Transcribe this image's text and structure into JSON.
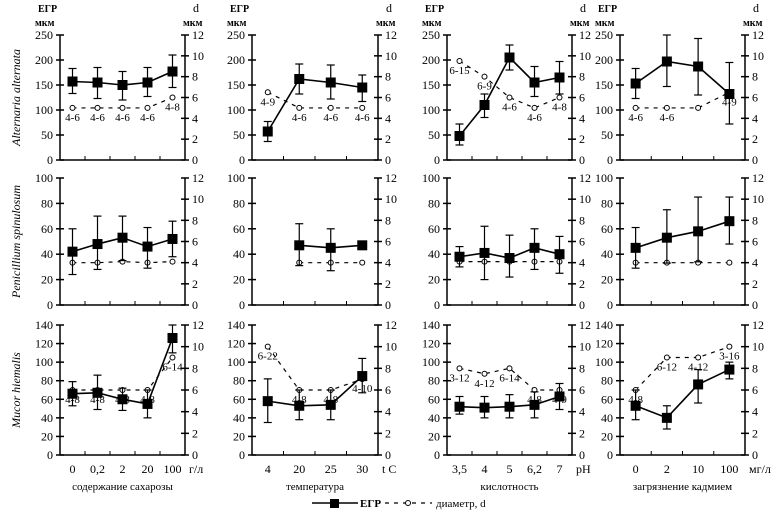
{
  "legend": {
    "egr_label": "ЕГР",
    "diam_label": "диаметр, d"
  },
  "axis_units": {
    "left_title": "ЕГР",
    "left_unit": "мкм",
    "right_title": "d",
    "right_unit": "мкм"
  },
  "rows": [
    {
      "species": "Alternaria alternata",
      "ylim": [
        0,
        250
      ],
      "yticks": [
        0,
        50,
        100,
        150,
        200,
        250
      ]
    },
    {
      "species": "Penicillium spinulosum",
      "ylim": [
        0,
        100
      ],
      "yticks": [
        0,
        20,
        40,
        60,
        80,
        100
      ]
    },
    {
      "species": "Mucor hiemalis",
      "ylim": [
        0,
        140
      ],
      "yticks": [
        0,
        20,
        40,
        60,
        80,
        100,
        120,
        140
      ]
    }
  ],
  "columns": [
    {
      "xlabel": "содержание сахарозы",
      "unit": "г/л",
      "categories": [
        "0",
        "0,2",
        "2",
        "20",
        "100"
      ]
    },
    {
      "xlabel": "температура",
      "unit": "t С",
      "categories": [
        "4",
        "20",
        "25",
        "30"
      ]
    },
    {
      "xlabel": "кислотность",
      "unit": "pH",
      "categories": [
        "3,5",
        "4",
        "5",
        "6,2",
        "7"
      ]
    },
    {
      "xlabel": "загрязнение кадмием",
      "unit": "мг/л",
      "categories": [
        "0",
        "2",
        "10",
        "100"
      ]
    }
  ],
  "right_axis": {
    "ylim": [
      0,
      12
    ],
    "yticks": [
      0,
      2,
      4,
      6,
      8,
      10,
      12
    ]
  },
  "chart_data": [
    {
      "type": "line",
      "row": 0,
      "col": 0,
      "title": "Alternaria alternata — содержание сахарозы",
      "series": [
        {
          "name": "ЕГР",
          "axis": "left",
          "values": [
            157,
            155,
            150,
            155,
            177
          ],
          "err_low": [
            133,
            123,
            120,
            127,
            145
          ],
          "err_high": [
            183,
            185,
            177,
            185,
            210
          ]
        },
        {
          "name": "диаметр, d",
          "axis": "right",
          "values": [
            5,
            5,
            5,
            5,
            6
          ],
          "labels": [
            "4-6",
            "4-6",
            "4-6",
            "4-6",
            "4-8"
          ]
        }
      ]
    },
    {
      "type": "line",
      "row": 0,
      "col": 1,
      "title": "Alternaria alternata — температура",
      "series": [
        {
          "name": "ЕГР",
          "axis": "left",
          "values": [
            57,
            162,
            155,
            145
          ],
          "err_low": [
            37,
            132,
            122,
            117
          ],
          "err_high": [
            77,
            192,
            190,
            170
          ]
        },
        {
          "name": "диаметр, d",
          "axis": "right",
          "values": [
            6.5,
            5,
            5,
            5
          ],
          "labels": [
            "4-9",
            "4-6",
            "4-6",
            "4-6"
          ]
        }
      ]
    },
    {
      "type": "line",
      "row": 0,
      "col": 2,
      "title": "Alternaria alternata — кислотность",
      "series": [
        {
          "name": "ЕГР",
          "axis": "left",
          "values": [
            48,
            110,
            205,
            155,
            165
          ],
          "err_low": [
            30,
            85,
            180,
            127,
            132
          ],
          "err_high": [
            72,
            132,
            230,
            187,
            197
          ],
          "x_index": [
            0,
            1,
            2,
            3,
            4
          ]
        },
        {
          "name": "диаметр, d",
          "axis": "right",
          "values": [
            9.5,
            8,
            6,
            5,
            6
          ],
          "labels": [
            "6-15",
            "6-9",
            "4-6",
            "4-6",
            "4-8"
          ]
        }
      ]
    },
    {
      "type": "line",
      "row": 0,
      "col": 3,
      "title": "Alternaria alternata — загрязнение кадмием",
      "series": [
        {
          "name": "ЕГР",
          "axis": "left",
          "values": [
            153,
            197,
            187,
            132
          ],
          "err_low": [
            123,
            147,
            130,
            72
          ],
          "err_high": [
            183,
            250,
            243,
            195
          ]
        },
        {
          "name": "диаметр, d",
          "axis": "right",
          "values": [
            5,
            5,
            5,
            6.5
          ],
          "labels": [
            "4-6",
            "4-6",
            "",
            "4-9"
          ]
        }
      ]
    },
    {
      "type": "line",
      "row": 1,
      "col": 0,
      "title": "Penicillium spinulosum — содержание сахарозы",
      "series": [
        {
          "name": "ЕГР",
          "axis": "left",
          "values": [
            42,
            48,
            53,
            46,
            52
          ],
          "err_low": [
            24,
            28,
            35,
            29,
            38
          ],
          "err_high": [
            60,
            70,
            70,
            61,
            66
          ]
        },
        {
          "name": "диаметр, d",
          "axis": "right",
          "values": [
            4,
            4,
            4.1,
            4,
            4.1
          ]
        }
      ]
    },
    {
      "type": "line",
      "row": 1,
      "col": 1,
      "title": "Penicillium spinulosum — температура",
      "series": [
        {
          "name": "ЕГР",
          "axis": "left",
          "values": [
            null,
            47,
            45,
            47
          ],
          "err_low": [
            null,
            31,
            27,
            null
          ],
          "err_high": [
            null,
            64,
            60,
            null
          ]
        },
        {
          "name": "диаметр, d",
          "axis": "right",
          "values": [
            null,
            4,
            4,
            4
          ]
        }
      ]
    },
    {
      "type": "line",
      "row": 1,
      "col": 2,
      "title": "Penicillium spinulosum — кислотность",
      "series": [
        {
          "name": "ЕГР",
          "axis": "left",
          "values": [
            38,
            41,
            37,
            45,
            40
          ],
          "err_low": [
            30,
            20,
            22,
            28,
            25
          ],
          "err_high": [
            46,
            62,
            55,
            60,
            54
          ]
        },
        {
          "name": "диаметр, d",
          "axis": "right",
          "values": [
            4.1,
            4.1,
            4.1,
            4.1,
            4.1
          ]
        }
      ]
    },
    {
      "type": "line",
      "row": 1,
      "col": 3,
      "title": "Penicillium spinulosum — загрязнение кадмием",
      "series": [
        {
          "name": "ЕГР",
          "axis": "left",
          "values": [
            45,
            53,
            58,
            66
          ],
          "err_low": [
            29,
            33,
            34,
            48
          ],
          "err_high": [
            61,
            75,
            85,
            85
          ]
        },
        {
          "name": "диаметр, d",
          "axis": "right",
          "values": [
            4,
            4,
            4,
            4
          ]
        }
      ]
    },
    {
      "type": "line",
      "row": 2,
      "col": 0,
      "title": "Mucor hiemalis — содержание сахарозы",
      "series": [
        {
          "name": "ЕГР",
          "axis": "left",
          "values": [
            66,
            67,
            60,
            55,
            126
          ],
          "err_low": [
            53,
            49,
            48,
            40,
            110
          ],
          "err_high": [
            79,
            86,
            72,
            70,
            140
          ]
        },
        {
          "name": "диаметр, d",
          "axis": "right",
          "values": [
            6,
            6,
            6,
            6,
            9
          ],
          "labels": [
            "4-8",
            "4-8",
            "4-8",
            "4-8",
            "6-14"
          ]
        }
      ]
    },
    {
      "type": "line",
      "row": 2,
      "col": 1,
      "title": "Mucor hiemalis — температура",
      "series": [
        {
          "name": "ЕГР",
          "axis": "left",
          "values": [
            58,
            53,
            54,
            85
          ],
          "err_low": [
            35,
            38,
            38,
            67
          ],
          "err_high": [
            82,
            70,
            70,
            104
          ]
        },
        {
          "name": "диаметр, d",
          "axis": "right",
          "values": [
            10,
            6,
            6,
            7
          ],
          "labels": [
            "6-22",
            "4-8",
            "4-8",
            "4-10"
          ]
        }
      ]
    },
    {
      "type": "line",
      "row": 2,
      "col": 2,
      "title": "Mucor hiemalis — кислотность",
      "series": [
        {
          "name": "ЕГР",
          "axis": "left",
          "values": [
            52,
            51,
            52,
            54,
            63
          ],
          "err_low": [
            44,
            40,
            40,
            40,
            49
          ],
          "err_high": [
            63,
            63,
            65,
            68,
            77
          ],
          "x_index": [
            0,
            1,
            2,
            3,
            4
          ]
        },
        {
          "name": "диаметр, d",
          "axis": "right",
          "values": [
            8,
            7.5,
            8,
            6,
            6
          ],
          "labels": [
            "3-12",
            "4-12",
            "6-14",
            "4-8",
            "4-9"
          ]
        }
      ]
    },
    {
      "type": "line",
      "row": 2,
      "col": 3,
      "title": "Mucor hiemalis — загрязнение кадмием",
      "series": [
        {
          "name": "ЕГР",
          "axis": "left",
          "values": [
            53,
            40,
            76,
            92
          ],
          "err_low": [
            38,
            28,
            56,
            82
          ],
          "err_high": [
            70,
            53,
            92,
            100
          ]
        },
        {
          "name": "диаметр, d",
          "axis": "right",
          "values": [
            6,
            9,
            9,
            10
          ],
          "labels": [
            "4-8",
            "6-12",
            "4-12",
            "3-16"
          ]
        }
      ]
    }
  ]
}
